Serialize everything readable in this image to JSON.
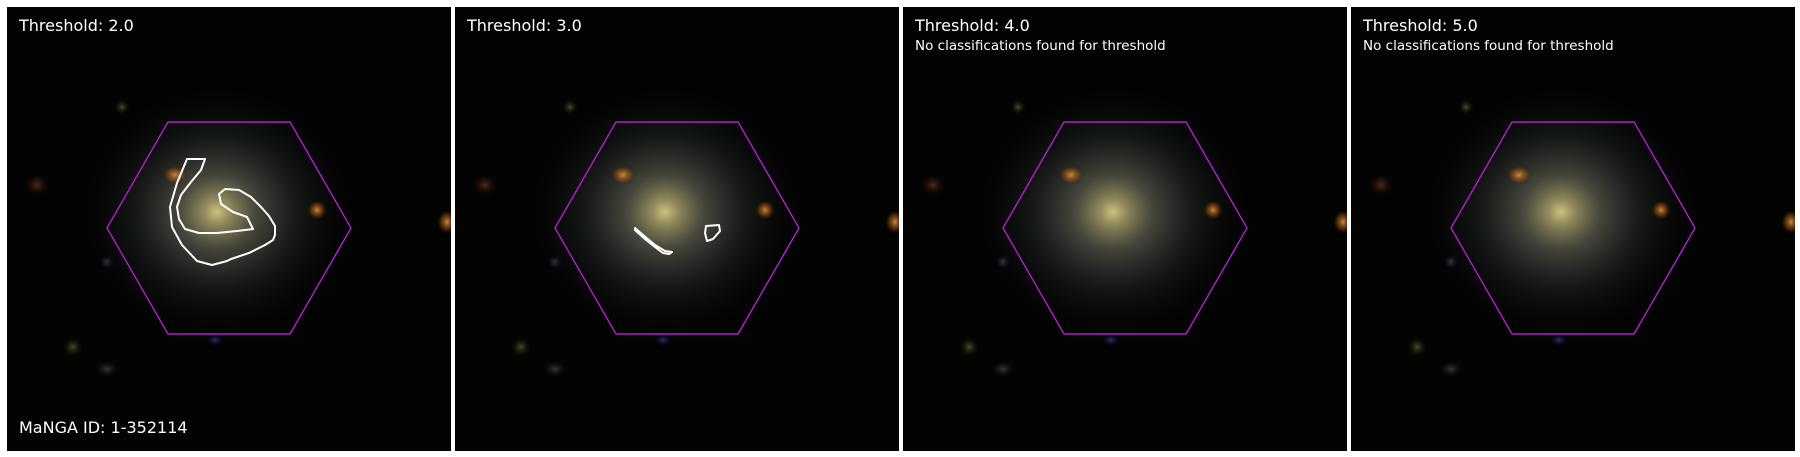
{
  "panels": [
    {
      "title": "Threshold: 2.0",
      "subtitle": "",
      "contours": [
        "large-arc",
        "curl"
      ]
    },
    {
      "title": "Threshold: 3.0",
      "subtitle": "",
      "contours": [
        "streak",
        "blob"
      ]
    },
    {
      "title": "Threshold: 4.0",
      "subtitle": "No classifications found for threshold",
      "contours": []
    },
    {
      "title": "Threshold: 5.0",
      "subtitle": "No classifications found for threshold",
      "contours": []
    }
  ],
  "footer": {
    "manga_id": "MaNGA ID: 1-352114"
  },
  "colors": {
    "hexagon": "#b020c8",
    "contour": "#ffffff",
    "background": "#030303"
  }
}
